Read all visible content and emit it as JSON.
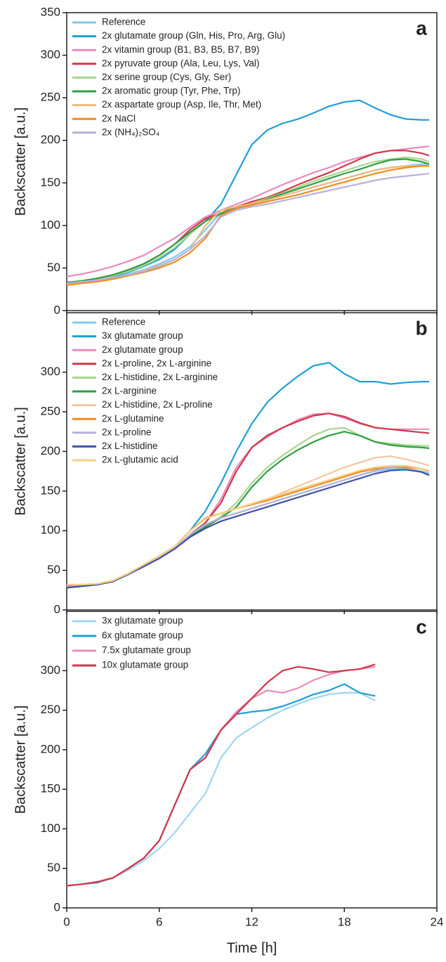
{
  "chart_data": [
    {
      "type": "line",
      "annotation": "a",
      "ylabel": "Backscatter [a.u.]",
      "x": [
        0,
        1,
        2,
        3,
        4,
        5,
        6,
        7,
        8,
        9,
        10,
        11,
        12,
        13,
        14,
        15,
        16,
        17,
        18,
        19,
        20,
        21,
        22,
        23,
        23.5
      ],
      "xlim": [
        0,
        24
      ],
      "xticks": [
        0,
        6,
        12,
        18,
        24
      ],
      "ylim": [
        0,
        350
      ],
      "yticks": [
        0,
        50,
        100,
        150,
        200,
        250,
        300,
        350
      ],
      "series": [
        {
          "name": "Reference",
          "color": "#7ecbee",
          "values": [
            32,
            34,
            36,
            39,
            43,
            48,
            55,
            63,
            75,
            95,
            115,
            122,
            125,
            130,
            135,
            140,
            145,
            150,
            155,
            160,
            165,
            168,
            170,
            172,
            172
          ]
        },
        {
          "name": "2x glutamate group (Gln, His, Pro, Arg, Glu)",
          "color": "#1e9fd8",
          "values": [
            32,
            34,
            36,
            40,
            45,
            52,
            60,
            72,
            90,
            105,
            125,
            160,
            195,
            212,
            220,
            225,
            232,
            240,
            245,
            247,
            238,
            230,
            225,
            224,
            224
          ]
        },
        {
          "name": "2x vitamin group (B1, B3, B5, B7, B9)",
          "color": "#e88bbd",
          "values": [
            40,
            43,
            47,
            52,
            58,
            65,
            75,
            85,
            98,
            110,
            118,
            125,
            132,
            140,
            148,
            155,
            162,
            168,
            175,
            180,
            185,
            188,
            190,
            192,
            193
          ]
        },
        {
          "name": "2x pyruvate group (Ala, Leu, Lys, Val)",
          "color": "#d0384b",
          "values": [
            32,
            34,
            37,
            41,
            47,
            55,
            65,
            78,
            95,
            108,
            115,
            122,
            128,
            133,
            140,
            148,
            155,
            162,
            170,
            178,
            185,
            188,
            188,
            185,
            182
          ]
        },
        {
          "name": "2x serine group (Cys, Gly, Ser)",
          "color": "#a8d58c",
          "values": [
            32,
            34,
            37,
            41,
            46,
            53,
            62,
            74,
            90,
            105,
            115,
            120,
            126,
            132,
            138,
            145,
            152,
            158,
            164,
            170,
            175,
            178,
            180,
            178,
            175
          ]
        },
        {
          "name": "2x aromatic group (Tyr, Phe, Trp)",
          "color": "#2e9e44",
          "values": [
            33,
            35,
            38,
            42,
            48,
            55,
            65,
            78,
            92,
            105,
            114,
            120,
            125,
            131,
            137,
            143,
            149,
            155,
            161,
            166,
            172,
            177,
            178,
            175,
            172
          ]
        },
        {
          "name": "2x aspartate group (Asp, Ile, Thr, Met)",
          "color": "#f2b87a",
          "values": [
            31,
            33,
            35,
            38,
            42,
            47,
            53,
            60,
            72,
            100,
            118,
            122,
            126,
            130,
            135,
            140,
            145,
            150,
            155,
            160,
            165,
            168,
            170,
            170,
            170
          ]
        },
        {
          "name": "2x NaCl",
          "color": "#f18b1e",
          "values": [
            30,
            32,
            34,
            37,
            41,
            45,
            50,
            57,
            68,
            85,
            112,
            120,
            124,
            128,
            132,
            136,
            141,
            146,
            151,
            156,
            161,
            165,
            168,
            170,
            170
          ]
        },
        {
          "name": "2x (NH₄)₂SO₄",
          "color": "#b7b0dc",
          "values": [
            32,
            34,
            36,
            39,
            42,
            46,
            52,
            60,
            72,
            88,
            110,
            118,
            122,
            125,
            129,
            133,
            137,
            141,
            145,
            149,
            153,
            156,
            158,
            160,
            161
          ]
        }
      ]
    },
    {
      "type": "line",
      "annotation": "b",
      "ylabel": "Backscatter [a.u.]",
      "x": [
        0,
        1,
        2,
        3,
        4,
        5,
        6,
        7,
        8,
        9,
        10,
        11,
        12,
        13,
        14,
        15,
        16,
        17,
        18,
        19,
        20,
        21,
        22,
        23,
        23.5
      ],
      "xlim": [
        0,
        24
      ],
      "xticks": [
        0,
        6,
        12,
        18,
        24
      ],
      "ylim": [
        0,
        375
      ],
      "yticks": [
        0,
        50,
        100,
        150,
        200,
        250,
        300
      ],
      "series": [
        {
          "name": "Reference",
          "color": "#7ecbee",
          "values": [
            28,
            30,
            32,
            36,
            45,
            55,
            66,
            78,
            94,
            106,
            116,
            122,
            128,
            134,
            140,
            146,
            152,
            158,
            164,
            170,
            175,
            178,
            178,
            175,
            172
          ]
        },
        {
          "name": "3x glutamate group",
          "color": "#1e9fd8",
          "values": [
            28,
            30,
            32,
            36,
            45,
            55,
            66,
            80,
            100,
            125,
            160,
            200,
            235,
            262,
            280,
            295,
            308,
            312,
            298,
            288,
            288,
            285,
            287,
            288,
            288
          ]
        },
        {
          "name": "2x glutamate group",
          "color": "#e88bbd",
          "values": [
            28,
            30,
            32,
            36,
            45,
            55,
            66,
            78,
            95,
            110,
            140,
            180,
            205,
            218,
            230,
            240,
            247,
            248,
            242,
            235,
            230,
            228,
            228,
            228,
            228
          ]
        },
        {
          "name": "2x L-proline, 2x L-arginine",
          "color": "#d0384b",
          "values": [
            28,
            30,
            32,
            36,
            45,
            55,
            66,
            78,
            95,
            110,
            135,
            175,
            205,
            220,
            230,
            238,
            245,
            248,
            244,
            236,
            230,
            228,
            226,
            224,
            223
          ]
        },
        {
          "name": "2x L-histidine, 2x L-arginine",
          "color": "#a8d58c",
          "values": [
            28,
            30,
            32,
            36,
            45,
            55,
            66,
            78,
            93,
            105,
            118,
            135,
            160,
            180,
            195,
            208,
            220,
            228,
            230,
            220,
            212,
            210,
            208,
            207,
            207
          ]
        },
        {
          "name": "2x L-arginine",
          "color": "#2e9e44",
          "values": [
            28,
            30,
            32,
            36,
            45,
            55,
            66,
            78,
            93,
            105,
            116,
            130,
            155,
            175,
            190,
            202,
            212,
            220,
            225,
            220,
            212,
            208,
            206,
            205,
            204
          ]
        },
        {
          "name": "2x L-histidine, 2x L-proline",
          "color": "#f2c8a0",
          "values": [
            30,
            31,
            33,
            37,
            46,
            57,
            68,
            80,
            100,
            115,
            122,
            128,
            134,
            140,
            148,
            156,
            164,
            172,
            180,
            186,
            192,
            194,
            190,
            185,
            182
          ]
        },
        {
          "name": "2x L-glutamine",
          "color": "#f18b1e",
          "values": [
            30,
            31,
            33,
            37,
            46,
            57,
            68,
            80,
            100,
            116,
            122,
            128,
            133,
            138,
            144,
            150,
            156,
            162,
            168,
            174,
            178,
            180,
            180,
            178,
            175
          ]
        },
        {
          "name": "2x L-proline",
          "color": "#b7b0dc",
          "values": [
            29,
            30,
            32,
            36,
            45,
            55,
            66,
            78,
            95,
            108,
            116,
            122,
            128,
            134,
            140,
            146,
            152,
            158,
            164,
            170,
            176,
            180,
            182,
            178,
            174
          ]
        },
        {
          "name": "2x L-histidine",
          "color": "#3f52a6",
          "values": [
            28,
            30,
            32,
            36,
            45,
            55,
            65,
            77,
            92,
            103,
            112,
            118,
            124,
            130,
            136,
            142,
            148,
            154,
            160,
            166,
            172,
            176,
            177,
            174,
            170
          ]
        },
        {
          "name": "2x L-glutamic acid",
          "color": "#f5d080",
          "values": [
            32,
            32,
            33,
            37,
            46,
            57,
            68,
            80,
            100,
            115,
            122,
            128,
            134,
            140,
            146,
            152,
            158,
            164,
            170,
            176,
            180,
            182,
            182,
            178,
            174
          ]
        }
      ]
    },
    {
      "type": "line",
      "annotation": "c",
      "ylabel": "Backscatter [a.u.]",
      "xlabel": "Time [h]",
      "x": [
        0,
        1,
        2,
        3,
        4,
        5,
        6,
        7,
        8,
        9,
        10,
        11,
        12,
        13,
        14,
        15,
        16,
        17,
        18,
        19,
        20,
        21,
        22,
        23,
        23.5
      ],
      "xlim": [
        0,
        24
      ],
      "xticks": [
        0,
        6,
        12,
        18,
        24
      ],
      "ylim": [
        0,
        375
      ],
      "yticks": [
        0,
        50,
        100,
        150,
        200,
        250,
        300
      ],
      "series": [
        {
          "name": "3x glutamate group",
          "color": "#9fd6f2",
          "values": [
            28,
            30,
            32,
            38,
            48,
            60,
            75,
            95,
            120,
            145,
            190,
            215,
            228,
            240,
            250,
            258,
            265,
            270,
            272,
            272,
            262,
            null,
            null,
            null,
            null
          ]
        },
        {
          "name": "6x glutamate group",
          "color": "#1e9fd8",
          "values": [
            28,
            30,
            32,
            38,
            50,
            63,
            85,
            130,
            175,
            195,
            225,
            245,
            248,
            250,
            255,
            262,
            270,
            275,
            283,
            272,
            268,
            null,
            null,
            null,
            null
          ]
        },
        {
          "name": "7.5x glutamate group",
          "color": "#e88bbd",
          "values": [
            28,
            30,
            33,
            38,
            50,
            63,
            85,
            130,
            175,
            190,
            225,
            248,
            265,
            275,
            272,
            278,
            288,
            295,
            300,
            302,
            305,
            null,
            null,
            null,
            null
          ]
        },
        {
          "name": "10x glutamate group",
          "color": "#d0384b",
          "values": [
            28,
            30,
            33,
            38,
            50,
            63,
            85,
            130,
            175,
            190,
            225,
            245,
            265,
            285,
            300,
            305,
            302,
            298,
            300,
            302,
            308,
            null,
            null,
            null,
            null
          ]
        }
      ]
    }
  ]
}
